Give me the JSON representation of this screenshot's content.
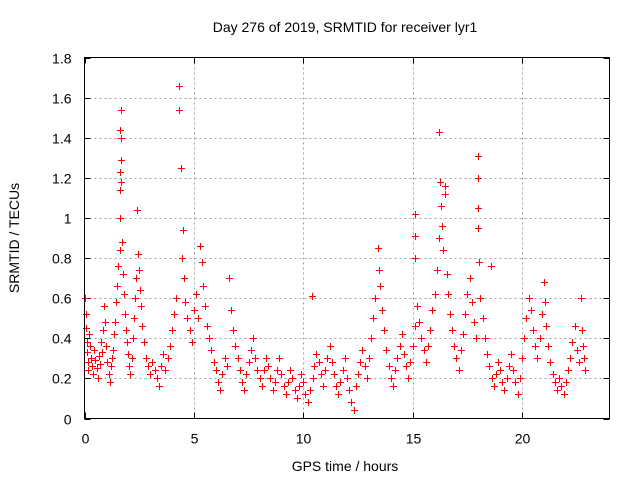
{
  "chart_data": {
    "type": "scatter",
    "title": "Day 276 of 2019, SRMTID for receiver lyr1",
    "xlabel": "GPS time / hours",
    "ylabel": "SRMTID / TECUs",
    "xlim": [
      0,
      24
    ],
    "ylim": [
      0,
      1.8
    ],
    "xticks": [
      0,
      5,
      10,
      15,
      20
    ],
    "xtick_labels": [
      "0",
      "5",
      "10",
      "15",
      "20"
    ],
    "yticks": [
      0,
      0.2,
      0.4,
      0.6,
      0.8,
      1,
      1.2,
      1.4,
      1.6,
      1.8
    ],
    "ytick_labels": [
      "0",
      "0.2",
      "0.4",
      "0.6",
      "0.8",
      "1",
      "1.2",
      "1.4",
      "1.6",
      "1.8"
    ],
    "grid": true,
    "legend": "none",
    "marker": "+",
    "series": [
      {
        "name": "SRMTID",
        "color": "#ff0000",
        "points": [
          [
            0.02,
            0.6
          ],
          [
            0.05,
            0.52
          ],
          [
            0.08,
            0.45
          ],
          [
            0.1,
            0.38
          ],
          [
            0.12,
            0.33
          ],
          [
            0.15,
            0.28
          ],
          [
            0.18,
            0.24
          ],
          [
            0.2,
            0.42
          ],
          [
            0.25,
            0.36
          ],
          [
            0.3,
            0.3
          ],
          [
            0.35,
            0.26
          ],
          [
            0.4,
            0.22
          ],
          [
            0.45,
            0.34
          ],
          [
            0.5,
            0.29
          ],
          [
            0.55,
            0.25
          ],
          [
            0.6,
            0.2
          ],
          [
            0.65,
            0.31
          ],
          [
            0.7,
            0.27
          ],
          [
            0.75,
            0.38
          ],
          [
            0.8,
            0.33
          ],
          [
            0.85,
            0.44
          ],
          [
            0.9,
            0.56
          ],
          [
            0.95,
            0.48
          ],
          [
            1.0,
            0.36
          ],
          [
            1.05,
            0.28
          ],
          [
            1.1,
            0.22
          ],
          [
            1.15,
            0.18
          ],
          [
            1.2,
            0.26
          ],
          [
            1.25,
            0.3
          ],
          [
            1.3,
            0.34
          ],
          [
            1.35,
            0.42
          ],
          [
            1.4,
            0.48
          ],
          [
            1.45,
            0.58
          ],
          [
            1.5,
            0.66
          ],
          [
            1.55,
            0.76
          ],
          [
            1.6,
            0.84
          ],
          [
            1.62,
            1.0
          ],
          [
            1.6,
            1.14
          ],
          [
            1.65,
            1.18
          ],
          [
            1.6,
            1.23
          ],
          [
            1.65,
            1.29
          ],
          [
            1.65,
            1.4
          ],
          [
            1.6,
            1.44
          ],
          [
            1.65,
            1.54
          ],
          [
            1.7,
            0.88
          ],
          [
            1.75,
            0.72
          ],
          [
            1.8,
            0.62
          ],
          [
            1.85,
            0.52
          ],
          [
            1.9,
            0.44
          ],
          [
            1.95,
            0.38
          ],
          [
            2.0,
            0.32
          ],
          [
            2.05,
            0.26
          ],
          [
            2.1,
            0.22
          ],
          [
            2.15,
            0.3
          ],
          [
            2.2,
            0.4
          ],
          [
            2.25,
            0.5
          ],
          [
            2.3,
            0.6
          ],
          [
            2.35,
            0.7
          ],
          [
            2.4,
            1.04
          ],
          [
            2.45,
            0.82
          ],
          [
            2.5,
            0.74
          ],
          [
            2.55,
            0.64
          ],
          [
            2.6,
            0.56
          ],
          [
            2.65,
            0.46
          ],
          [
            2.7,
            0.38
          ],
          [
            2.8,
            0.3
          ],
          [
            2.9,
            0.26
          ],
          [
            3.0,
            0.22
          ],
          [
            3.1,
            0.28
          ],
          [
            3.2,
            0.24
          ],
          [
            3.3,
            0.2
          ],
          [
            3.4,
            0.16
          ],
          [
            3.5,
            0.26
          ],
          [
            3.6,
            0.32
          ],
          [
            3.7,
            0.24
          ],
          [
            3.8,
            0.3
          ],
          [
            3.9,
            0.36
          ],
          [
            4.0,
            0.44
          ],
          [
            4.1,
            0.52
          ],
          [
            4.2,
            0.6
          ],
          [
            4.3,
            1.66
          ],
          [
            4.3,
            1.54
          ],
          [
            4.4,
            1.25
          ],
          [
            4.45,
            0.8
          ],
          [
            4.5,
            0.94
          ],
          [
            4.55,
            0.7
          ],
          [
            4.6,
            0.58
          ],
          [
            4.7,
            0.5
          ],
          [
            4.8,
            0.44
          ],
          [
            4.9,
            0.38
          ],
          [
            5.0,
            0.54
          ],
          [
            5.1,
            0.62
          ],
          [
            5.2,
            0.5
          ],
          [
            5.3,
            0.86
          ],
          [
            5.35,
            0.78
          ],
          [
            5.4,
            0.66
          ],
          [
            5.5,
            0.56
          ],
          [
            5.6,
            0.46
          ],
          [
            5.7,
            0.4
          ],
          [
            5.8,
            0.34
          ],
          [
            5.9,
            0.28
          ],
          [
            6.0,
            0.24
          ],
          [
            6.1,
            0.18
          ],
          [
            6.2,
            0.14
          ],
          [
            6.3,
            0.22
          ],
          [
            6.4,
            0.3
          ],
          [
            6.5,
            0.26
          ],
          [
            6.6,
            0.7
          ],
          [
            6.7,
            0.54
          ],
          [
            6.8,
            0.44
          ],
          [
            6.9,
            0.36
          ],
          [
            7.0,
            0.3
          ],
          [
            7.1,
            0.24
          ],
          [
            7.2,
            0.18
          ],
          [
            7.3,
            0.14
          ],
          [
            7.4,
            0.22
          ],
          [
            7.5,
            0.28
          ],
          [
            7.6,
            0.34
          ],
          [
            7.7,
            0.4
          ],
          [
            7.8,
            0.3
          ],
          [
            7.9,
            0.24
          ],
          [
            8.0,
            0.2
          ],
          [
            8.1,
            0.16
          ],
          [
            8.2,
            0.24
          ],
          [
            8.3,
            0.3
          ],
          [
            8.4,
            0.26
          ],
          [
            8.5,
            0.2
          ],
          [
            8.6,
            0.14
          ],
          [
            8.7,
            0.18
          ],
          [
            8.8,
            0.24
          ],
          [
            8.9,
            0.3
          ],
          [
            9.0,
            0.22
          ],
          [
            9.1,
            0.16
          ],
          [
            9.2,
            0.12
          ],
          [
            9.3,
            0.18
          ],
          [
            9.4,
            0.24
          ],
          [
            9.5,
            0.2
          ],
          [
            9.6,
            0.14
          ],
          [
            9.7,
            0.1
          ],
          [
            9.8,
            0.16
          ],
          [
            9.9,
            0.22
          ],
          [
            10.0,
            0.18
          ],
          [
            10.1,
            0.12
          ],
          [
            10.2,
            0.08
          ],
          [
            10.3,
            0.14
          ],
          [
            10.4,
            0.61
          ],
          [
            10.45,
            0.2
          ],
          [
            10.5,
            0.26
          ],
          [
            10.6,
            0.32
          ],
          [
            10.7,
            0.28
          ],
          [
            10.8,
            0.22
          ],
          [
            10.9,
            0.16
          ],
          [
            11.0,
            0.24
          ],
          [
            11.1,
            0.3
          ],
          [
            11.2,
            0.36
          ],
          [
            11.3,
            0.28
          ],
          [
            11.4,
            0.22
          ],
          [
            11.5,
            0.16
          ],
          [
            11.6,
            0.12
          ],
          [
            11.7,
            0.18
          ],
          [
            11.8,
            0.24
          ],
          [
            11.9,
            0.3
          ],
          [
            12.0,
            0.2
          ],
          [
            12.1,
            0.14
          ],
          [
            12.2,
            0.08
          ],
          [
            12.3,
            0.04
          ],
          [
            12.4,
            0.16
          ],
          [
            12.5,
            0.22
          ],
          [
            12.6,
            0.28
          ],
          [
            12.7,
            0.34
          ],
          [
            12.8,
            0.26
          ],
          [
            12.9,
            0.2
          ],
          [
            13.0,
            0.3
          ],
          [
            13.1,
            0.4
          ],
          [
            13.2,
            0.5
          ],
          [
            13.3,
            0.6
          ],
          [
            13.4,
            0.85
          ],
          [
            13.45,
            0.74
          ],
          [
            13.5,
            0.66
          ],
          [
            13.6,
            0.54
          ],
          [
            13.7,
            0.44
          ],
          [
            13.8,
            0.34
          ],
          [
            13.9,
            0.26
          ],
          [
            14.0,
            0.2
          ],
          [
            14.1,
            0.16
          ],
          [
            14.2,
            0.24
          ],
          [
            14.3,
            0.3
          ],
          [
            14.4,
            0.36
          ],
          [
            14.5,
            0.42
          ],
          [
            14.6,
            0.32
          ],
          [
            14.7,
            0.26
          ],
          [
            14.8,
            0.2
          ],
          [
            14.9,
            0.28
          ],
          [
            15.0,
            0.36
          ],
          [
            15.1,
            0.46
          ],
          [
            15.1,
            0.8
          ],
          [
            15.1,
            0.91
          ],
          [
            15.1,
            1.02
          ],
          [
            15.2,
            0.56
          ],
          [
            15.3,
            0.48
          ],
          [
            15.4,
            0.4
          ],
          [
            15.5,
            0.34
          ],
          [
            15.6,
            0.28
          ],
          [
            15.7,
            0.36
          ],
          [
            15.8,
            0.44
          ],
          [
            15.9,
            0.54
          ],
          [
            16.0,
            0.62
          ],
          [
            16.1,
            0.74
          ],
          [
            16.2,
            0.9
          ],
          [
            16.2,
            1.43
          ],
          [
            16.25,
            1.18
          ],
          [
            16.3,
            1.06
          ],
          [
            16.35,
            0.96
          ],
          [
            16.4,
            0.84
          ],
          [
            16.5,
            1.16
          ],
          [
            16.5,
            1.12
          ],
          [
            16.55,
            0.72
          ],
          [
            16.6,
            0.62
          ],
          [
            16.7,
            0.52
          ],
          [
            16.8,
            0.44
          ],
          [
            16.9,
            0.36
          ],
          [
            17.0,
            0.3
          ],
          [
            17.1,
            0.24
          ],
          [
            17.2,
            0.34
          ],
          [
            17.3,
            0.42
          ],
          [
            17.4,
            0.52
          ],
          [
            17.5,
            0.62
          ],
          [
            17.6,
            0.7
          ],
          [
            17.7,
            0.58
          ],
          [
            17.8,
            0.48
          ],
          [
            17.9,
            0.4
          ],
          [
            18.0,
            1.31
          ],
          [
            18.0,
            1.2
          ],
          [
            18.0,
            1.05
          ],
          [
            18.0,
            0.95
          ],
          [
            18.05,
            0.78
          ],
          [
            18.1,
            0.6
          ],
          [
            18.2,
            0.5
          ],
          [
            18.3,
            0.4
          ],
          [
            18.4,
            0.32
          ],
          [
            18.5,
            0.26
          ],
          [
            18.6,
            0.76
          ],
          [
            18.65,
            0.2
          ],
          [
            18.7,
            0.16
          ],
          [
            18.8,
            0.22
          ],
          [
            18.9,
            0.28
          ],
          [
            19.0,
            0.24
          ],
          [
            19.1,
            0.18
          ],
          [
            19.2,
            0.14
          ],
          [
            19.3,
            0.2
          ],
          [
            19.4,
            0.26
          ],
          [
            19.5,
            0.32
          ],
          [
            19.6,
            0.24
          ],
          [
            19.7,
            0.18
          ],
          [
            19.8,
            0.12
          ],
          [
            19.9,
            0.2
          ],
          [
            20.0,
            0.3
          ],
          [
            20.1,
            0.4
          ],
          [
            20.2,
            0.5
          ],
          [
            20.3,
            0.6
          ],
          [
            20.4,
            0.54
          ],
          [
            20.5,
            0.44
          ],
          [
            20.6,
            0.36
          ],
          [
            20.7,
            0.3
          ],
          [
            20.8,
            0.4
          ],
          [
            20.9,
            0.52
          ],
          [
            21.0,
            0.68
          ],
          [
            21.05,
            0.58
          ],
          [
            21.1,
            0.46
          ],
          [
            21.2,
            0.36
          ],
          [
            21.3,
            0.28
          ],
          [
            21.4,
            0.22
          ],
          [
            21.5,
            0.18
          ],
          [
            21.6,
            0.14
          ],
          [
            21.7,
            0.2
          ],
          [
            21.8,
            0.16
          ],
          [
            21.9,
            0.12
          ],
          [
            22.0,
            0.18
          ],
          [
            22.1,
            0.24
          ],
          [
            22.2,
            0.3
          ],
          [
            22.3,
            0.38
          ],
          [
            22.4,
            0.46
          ],
          [
            22.5,
            0.34
          ],
          [
            22.6,
            0.28
          ],
          [
            22.7,
            0.6
          ],
          [
            22.75,
            0.44
          ],
          [
            22.8,
            0.36
          ],
          [
            22.85,
            0.3
          ],
          [
            22.9,
            0.24
          ]
        ]
      }
    ]
  }
}
